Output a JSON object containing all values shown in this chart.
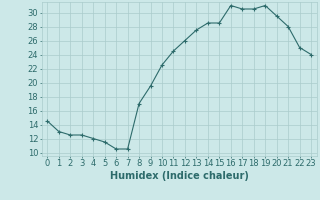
{
  "x": [
    0,
    1,
    2,
    3,
    4,
    5,
    6,
    7,
    8,
    9,
    10,
    11,
    12,
    13,
    14,
    15,
    16,
    17,
    18,
    19,
    20,
    21,
    22,
    23
  ],
  "y": [
    14.5,
    13,
    12.5,
    12.5,
    12,
    11.5,
    10.5,
    10.5,
    17,
    19.5,
    22.5,
    24.5,
    26,
    27.5,
    28.5,
    28.5,
    31,
    30.5,
    30.5,
    31,
    29.5,
    28,
    25,
    24
  ],
  "line_color": "#2d6b6b",
  "marker": "+",
  "bg_color": "#cce8e8",
  "grid_color": "#aacccc",
  "xlabel": "Humidex (Indice chaleur)",
  "xlim": [
    -0.5,
    23.5
  ],
  "ylim": [
    9.5,
    31.5
  ],
  "yticks": [
    10,
    12,
    14,
    16,
    18,
    20,
    22,
    24,
    26,
    28,
    30
  ],
  "xtick_labels": [
    "0",
    "1",
    "2",
    "3",
    "4",
    "5",
    "6",
    "7",
    "8",
    "9",
    "10",
    "11",
    "12",
    "13",
    "14",
    "15",
    "16",
    "17",
    "18",
    "19",
    "20",
    "21",
    "22",
    "23"
  ],
  "tick_color": "#2d6b6b",
  "label_fontsize": 7,
  "tick_fontsize": 6
}
